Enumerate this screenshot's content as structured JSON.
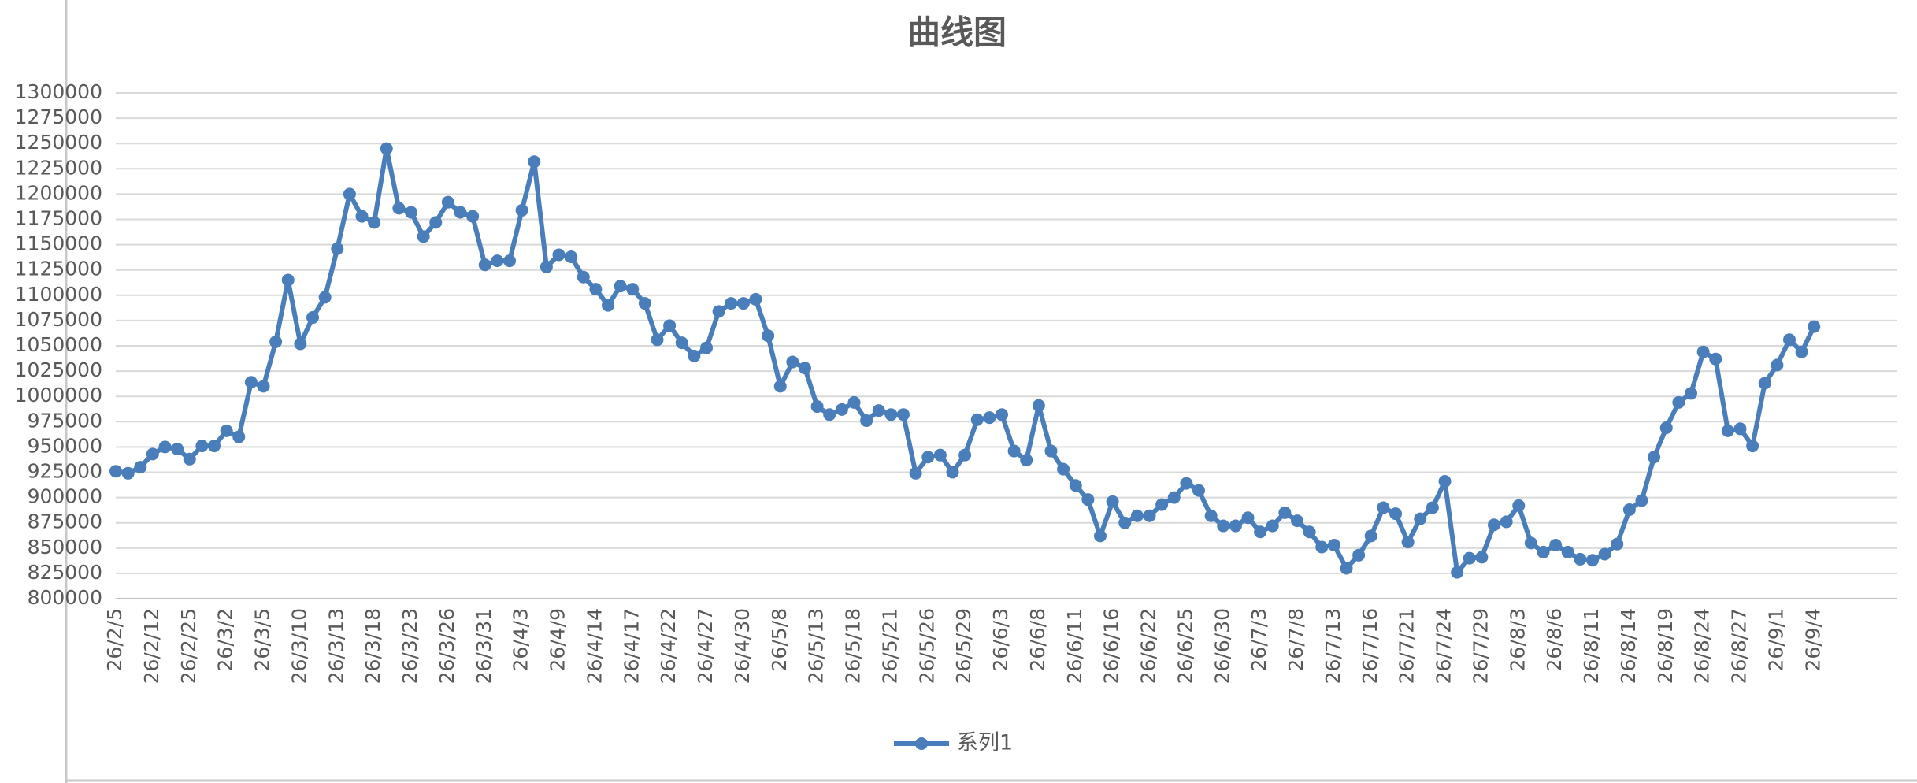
{
  "chart_data": {
    "type": "line",
    "title": "曲线图",
    "categories": [
      "26/2/5",
      null,
      null,
      "26/2/12",
      null,
      null,
      "26/2/25",
      null,
      null,
      "26/3/2",
      null,
      null,
      "26/3/5",
      null,
      null,
      "26/3/10",
      null,
      null,
      "26/3/13",
      null,
      null,
      "26/3/18",
      null,
      null,
      "26/3/23",
      null,
      null,
      "26/3/26",
      null,
      null,
      "26/3/31",
      null,
      null,
      "26/4/3",
      null,
      null,
      "26/4/9",
      null,
      null,
      "26/4/14",
      null,
      null,
      "26/4/17",
      null,
      null,
      "26/4/22",
      null,
      null,
      "26/4/27",
      null,
      null,
      "26/4/30",
      null,
      null,
      "26/5/8",
      null,
      null,
      "26/5/13",
      null,
      null,
      "26/5/18",
      null,
      null,
      "26/5/21",
      null,
      null,
      "26/5/26",
      null,
      null,
      "26/5/29",
      null,
      null,
      "26/6/3",
      null,
      null,
      "26/6/8",
      null,
      null,
      "26/6/11",
      null,
      null,
      "26/6/16",
      null,
      null,
      "26/6/22",
      null,
      null,
      "26/6/25",
      null,
      null,
      "26/6/30",
      null,
      null,
      "26/7/3",
      null,
      null,
      "26/7/8",
      null,
      null,
      "26/7/13",
      null,
      null,
      "26/7/16",
      null,
      null,
      "26/7/21",
      null,
      null,
      "26/7/24",
      null,
      null,
      "26/7/29",
      null,
      null,
      "26/8/3",
      null,
      null,
      "26/8/6",
      null,
      null,
      "26/8/11",
      null,
      null,
      "26/8/14",
      null,
      null,
      "26/8/19",
      null,
      null,
      "26/8/24",
      null,
      null,
      "26/8/27",
      null,
      null,
      "26/9/1",
      null,
      null,
      "26/9/4",
      null,
      null,
      null,
      null,
      null,
      null
    ],
    "series": [
      {
        "name": "系列1",
        "color": "#4a7ebb",
        "values": [
          926000,
          924000,
          930000,
          943000,
          950000,
          948000,
          938000,
          951000,
          951000,
          966000,
          960000,
          1014000,
          1010000,
          1054000,
          1115000,
          1052000,
          1078000,
          1098000,
          1146000,
          1200000,
          1178000,
          1172000,
          1245000,
          1186000,
          1182000,
          1158000,
          1172000,
          1192000,
          1182000,
          1178000,
          1130000,
          1134000,
          1134000,
          1184000,
          1232000,
          1128000,
          1140000,
          1138000,
          1118000,
          1106000,
          1090000,
          1109000,
          1106000,
          1092000,
          1056000,
          1070000,
          1053000,
          1040000,
          1048000,
          1084000,
          1092000,
          1092000,
          1096000,
          1060000,
          1010000,
          1034000,
          1028000,
          990000,
          982000,
          987000,
          994000,
          976000,
          986000,
          982000,
          982000,
          924000,
          940000,
          942000,
          925000,
          942000,
          977000,
          979000,
          982000,
          946000,
          937000,
          991000,
          946000,
          928000,
          912000,
          898000,
          862000,
          896000,
          875000,
          882000,
          882000,
          893000,
          900000,
          914000,
          907000,
          882000,
          872000,
          872000,
          880000,
          866000,
          872000,
          885000,
          877000,
          866000,
          851000,
          853000,
          830000,
          843000,
          862000,
          890000,
          884000,
          856000,
          879000,
          890000,
          916000,
          826000,
          840000,
          841000,
          873000,
          876000,
          892000,
          855000,
          846000,
          853000,
          846000,
          839000,
          838000,
          844000,
          854000,
          888000,
          897000,
          940000,
          969000,
          994000,
          1003000,
          1044000,
          1037000,
          966000,
          968000,
          951000,
          1013000,
          1031000,
          1056000,
          1044000,
          1069000,
          null,
          null,
          null,
          null,
          null,
          null
        ]
      }
    ],
    "ylim": [
      800000,
      1300000
    ],
    "yticks": [
      800000,
      825000,
      850000,
      875000,
      900000,
      925000,
      950000,
      975000,
      1000000,
      1025000,
      1050000,
      1075000,
      1100000,
      1125000,
      1150000,
      1175000,
      1200000,
      1225000,
      1250000,
      1275000,
      1300000
    ],
    "grid": true,
    "legend": "bottom"
  }
}
